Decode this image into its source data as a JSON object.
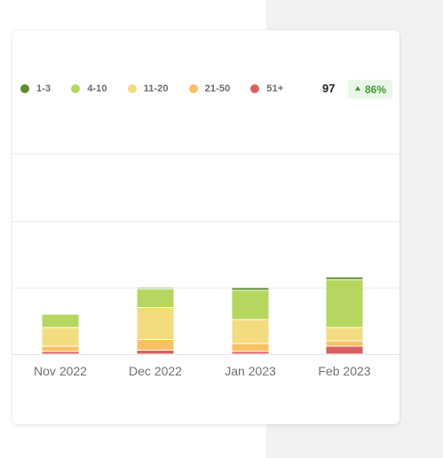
{
  "legend": {
    "items": [
      {
        "label": "1-3",
        "color": "#5e8c2c"
      },
      {
        "label": "4-10",
        "color": "#b5d65f"
      },
      {
        "label": "11-20",
        "color": "#f3db80"
      },
      {
        "label": "21-50",
        "color": "#f7c163"
      },
      {
        "label": "51+",
        "color": "#d96060"
      }
    ]
  },
  "summary": {
    "total": "97",
    "change": "86%",
    "change_direction": "up",
    "change_color": "#3d9b35"
  },
  "chart_data": {
    "type": "bar",
    "stacked": true,
    "categories": [
      "Nov 2022",
      "Dec 2022",
      "Jan 2023",
      "Feb 2023"
    ],
    "series": [
      {
        "name": "51+",
        "color": "#d96060",
        "values": [
          2,
          3,
          2,
          6
        ]
      },
      {
        "name": "21-50",
        "color": "#f7c163",
        "values": [
          4,
          8,
          6,
          4
        ]
      },
      {
        "name": "11-20",
        "color": "#f3db80",
        "values": [
          14,
          24,
          18,
          10
        ]
      },
      {
        "name": "4-10",
        "color": "#b5d65f",
        "values": [
          10,
          14,
          22,
          36
        ]
      },
      {
        "name": "1-3",
        "color": "#5e8c2c",
        "values": [
          0,
          1,
          2,
          2
        ]
      }
    ],
    "ylim": [
      0,
      90
    ],
    "grid": true,
    "legend_position": "top-left"
  }
}
